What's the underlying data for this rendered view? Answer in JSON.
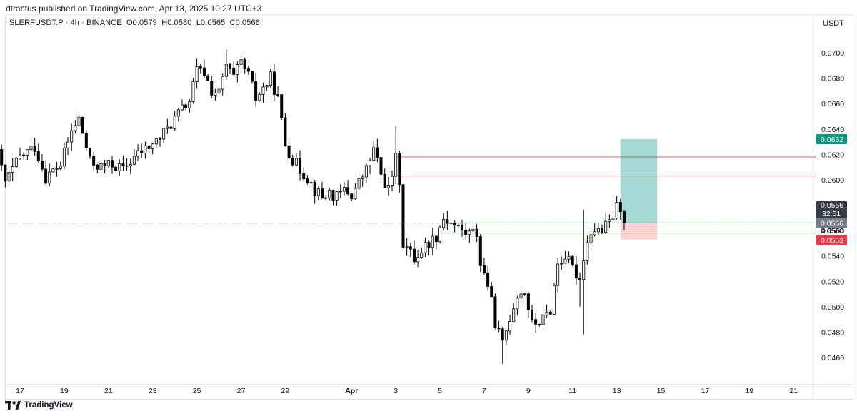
{
  "header": {
    "publish_line": "dtractus published on TradingView.com, Apr 13, 2025 10:27 UTC+3"
  },
  "legend": {
    "symbol": "SLERFUSDT.P · 4h · BINANCE",
    "open": "O0.0579",
    "high": "H0.0580",
    "low": "L0.0565",
    "close": "C0.0566"
  },
  "currency": "USDT",
  "footer": {
    "brand": "TradingView"
  },
  "colors": {
    "candle_up_fill": "#ffffff",
    "candle_down_fill": "#000000",
    "candle_outline": "#000000",
    "resistance_line": "#f7525f",
    "support_line": "#4caf50",
    "target_zone": "#26a69a",
    "stop_zone": "#f7525f",
    "badge_target": "#089981",
    "badge_stop": "#f23645",
    "badge_last": "#363a45",
    "badge_last_price": "#787b86"
  },
  "chart_data": {
    "type": "candlestick",
    "symbol": "SLERFUSDT.P",
    "interval": "4h",
    "exchange": "BINANCE",
    "y_axis": {
      "ticks": [
        "0.0460",
        "0.0480",
        "0.0500",
        "0.0520",
        "0.0540",
        "0.0560",
        "0.0580",
        "0.0600",
        "0.0620",
        "0.0640",
        "0.0660",
        "0.0680",
        "0.0700"
      ],
      "range": [
        0.0447,
        0.0722
      ]
    },
    "x_axis": {
      "ticks": [
        "17",
        "19",
        "21",
        "23",
        "25",
        "27",
        "29",
        "Apr",
        "3",
        "5",
        "7",
        "9",
        "11",
        "13",
        "15",
        "17",
        "19",
        "21"
      ],
      "range_days": [
        "Mar 16",
        "Apr 22"
      ]
    },
    "last_price": {
      "price": "0.0566",
      "countdown": "32:51"
    },
    "price_labels": [
      {
        "label": "0.0632",
        "kind": "target"
      },
      {
        "label": "0.0566",
        "kind": "last"
      },
      {
        "label": "0.0560",
        "kind": "plain"
      },
      {
        "label": "0.0553",
        "kind": "stop"
      }
    ],
    "horizontal_lines": [
      {
        "price": 0.0618,
        "color": "resistance",
        "from": "Apr 3"
      },
      {
        "price": 0.0603,
        "color": "resistance",
        "from": "Apr 3"
      },
      {
        "price": 0.0566,
        "color": "support",
        "from": "Apr 5"
      },
      {
        "price": 0.0558,
        "color": "support",
        "from": "Apr 5"
      }
    ],
    "position": {
      "type": "long",
      "entry": 0.0566,
      "target": 0.0632,
      "stop": 0.0553,
      "from": "Apr 13 04:00",
      "to": "Apr 14 20:00"
    },
    "waypoints": [
      [
        "2025-03-16 00:00",
        0.062
      ],
      [
        "2025-03-16 08:00",
        0.0598
      ],
      [
        "2025-03-17 00:00",
        0.0618
      ],
      [
        "2025-03-17 16:00",
        0.0626
      ],
      [
        "2025-03-18 04:00",
        0.0602
      ],
      [
        "2025-03-18 20:00",
        0.0612
      ],
      [
        "2025-03-19 08:00",
        0.0638
      ],
      [
        "2025-03-19 16:00",
        0.0648
      ],
      [
        "2025-03-20 04:00",
        0.0614
      ],
      [
        "2025-03-20 16:00",
        0.061
      ],
      [
        "2025-03-21 04:00",
        0.0612
      ],
      [
        "2025-03-21 16:00",
        0.0608
      ],
      [
        "2025-03-22 04:00",
        0.0618
      ],
      [
        "2025-03-22 16:00",
        0.0624
      ],
      [
        "2025-03-23 04:00",
        0.063
      ],
      [
        "2025-03-23 16:00",
        0.064
      ],
      [
        "2025-03-24 04:00",
        0.0652
      ],
      [
        "2025-03-24 16:00",
        0.0662
      ],
      [
        "2025-03-25 00:00",
        0.0686
      ],
      [
        "2025-03-25 08:00",
        0.0684
      ],
      [
        "2025-03-25 16:00",
        0.067
      ],
      [
        "2025-03-26 00:00",
        0.0668
      ],
      [
        "2025-03-26 08:00",
        0.069
      ],
      [
        "2025-03-26 16:00",
        0.068
      ],
      [
        "2025-03-27 00:00",
        0.0692
      ],
      [
        "2025-03-27 08:00",
        0.0682
      ],
      [
        "2025-03-27 16:00",
        0.0664
      ],
      [
        "2025-03-28 00:00",
        0.0672
      ],
      [
        "2025-03-28 08:00",
        0.068
      ],
      [
        "2025-03-28 16:00",
        0.0664
      ],
      [
        "2025-03-29 00:00",
        0.0628
      ],
      [
        "2025-03-29 08:00",
        0.0616
      ],
      [
        "2025-03-29 16:00",
        0.0608
      ],
      [
        "2025-03-30 00:00",
        0.0602
      ],
      [
        "2025-03-30 08:00",
        0.0592
      ],
      [
        "2025-03-30 16:00",
        0.0586
      ],
      [
        "2025-03-31 00:00",
        0.059
      ],
      [
        "2025-03-31 08:00",
        0.0586
      ],
      [
        "2025-03-31 16:00",
        0.0592
      ],
      [
        "2025-04-01 00:00",
        0.0588
      ],
      [
        "2025-04-01 08:00",
        0.0598
      ],
      [
        "2025-04-01 16:00",
        0.0608
      ],
      [
        "2025-04-02 00:00",
        0.0624
      ],
      [
        "2025-04-02 08:00",
        0.0604
      ],
      [
        "2025-04-02 16:00",
        0.0592
      ],
      [
        "2025-04-03 00:00",
        0.0616
      ],
      [
        "2025-04-03 04:00",
        0.06
      ],
      [
        "2025-04-03 08:00",
        0.055
      ],
      [
        "2025-04-03 20:00",
        0.0538
      ],
      [
        "2025-04-04 08:00",
        0.0548
      ],
      [
        "2025-04-04 20:00",
        0.0556
      ],
      [
        "2025-04-05 04:00",
        0.057
      ],
      [
        "2025-04-05 16:00",
        0.0564
      ],
      [
        "2025-04-06 04:00",
        0.0558
      ],
      [
        "2025-04-06 16:00",
        0.0558
      ],
      [
        "2025-04-06 20:00",
        0.0534
      ],
      [
        "2025-04-07 04:00",
        0.0518
      ],
      [
        "2025-04-07 12:00",
        0.0488
      ],
      [
        "2025-04-07 20:00",
        0.047
      ],
      [
        "2025-04-08 04:00",
        0.0492
      ],
      [
        "2025-04-08 12:00",
        0.051
      ],
      [
        "2025-04-08 20:00",
        0.0512
      ],
      [
        "2025-04-09 04:00",
        0.0486
      ],
      [
        "2025-04-09 16:00",
        0.049
      ],
      [
        "2025-04-10 00:00",
        0.0498
      ],
      [
        "2025-04-10 08:00",
        0.0534
      ],
      [
        "2025-04-10 16:00",
        0.054
      ],
      [
        "2025-04-11 00:00",
        0.053
      ],
      [
        "2025-04-11 08:00",
        0.0522
      ],
      [
        "2025-04-11 12:00",
        0.054
      ],
      [
        "2025-04-11 20:00",
        0.056
      ],
      [
        "2025-04-12 08:00",
        0.056
      ],
      [
        "2025-04-12 16:00",
        0.0566
      ],
      [
        "2025-04-13 00:00",
        0.0578
      ],
      [
        "2025-04-13 04:00",
        0.0579
      ],
      [
        "2025-04-13 08:00",
        0.0566
      ]
    ]
  }
}
